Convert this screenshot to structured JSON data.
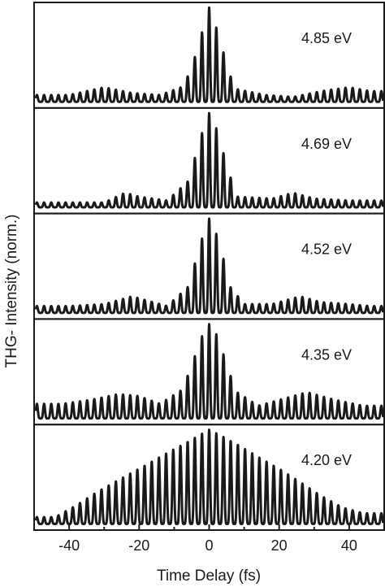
{
  "chart_data": {
    "type": "line",
    "title": "",
    "xlabel": "Time Delay (fs)",
    "ylabel": "THG- Intensity (norm.)",
    "xlim": [
      -50,
      50
    ],
    "ylim": [
      0,
      1
    ],
    "x_ticks": [
      -40,
      -20,
      0,
      20,
      40
    ],
    "x_tick_labels": [
      "-40",
      "-20",
      "0",
      "20",
      "40"
    ],
    "y_ticks_labeled": false,
    "grid": false,
    "legend": "none",
    "line_color": "#1a1a1a",
    "fringe_period_fs": 2.05,
    "series": [
      {
        "name": "4.85 eV",
        "baseline": 0.03,
        "peaks": [
          {
            "x": -40,
            "y": 0.1
          },
          {
            "x": -30,
            "y": 0.18
          },
          {
            "x": -22,
            "y": 0.12
          },
          {
            "x": -14,
            "y": 0.1
          },
          {
            "x": -8,
            "y": 0.18
          },
          {
            "x": -6,
            "y": 0.3
          },
          {
            "x": -4,
            "y": 0.5
          },
          {
            "x": -2,
            "y": 0.75
          },
          {
            "x": 0,
            "y": 1.0
          },
          {
            "x": 2,
            "y": 0.8
          },
          {
            "x": 4,
            "y": 0.55
          },
          {
            "x": 6,
            "y": 0.3
          },
          {
            "x": 8,
            "y": 0.16
          },
          {
            "x": 16,
            "y": 0.1
          },
          {
            "x": 24,
            "y": 0.08
          },
          {
            "x": 32,
            "y": 0.14
          },
          {
            "x": 40,
            "y": 0.18
          },
          {
            "x": 46,
            "y": 0.14
          }
        ]
      },
      {
        "name": "4.69 eV",
        "baseline": 0.03,
        "peaks": [
          {
            "x": -40,
            "y": 0.08
          },
          {
            "x": -30,
            "y": 0.08
          },
          {
            "x": -24,
            "y": 0.18
          },
          {
            "x": -20,
            "y": 0.14
          },
          {
            "x": -12,
            "y": 0.1
          },
          {
            "x": -6,
            "y": 0.3
          },
          {
            "x": -4,
            "y": 0.55
          },
          {
            "x": -2,
            "y": 0.8
          },
          {
            "x": 0,
            "y": 1.0
          },
          {
            "x": 2,
            "y": 0.85
          },
          {
            "x": 4,
            "y": 0.6
          },
          {
            "x": 6,
            "y": 0.35
          },
          {
            "x": 8,
            "y": 0.14
          },
          {
            "x": 18,
            "y": 0.12
          },
          {
            "x": 24,
            "y": 0.18
          },
          {
            "x": 30,
            "y": 0.12
          },
          {
            "x": 40,
            "y": 0.1
          },
          {
            "x": 46,
            "y": 0.1
          }
        ]
      },
      {
        "name": "4.52 eV",
        "baseline": 0.03,
        "peaks": [
          {
            "x": -40,
            "y": 0.1
          },
          {
            "x": -30,
            "y": 0.12
          },
          {
            "x": -22,
            "y": 0.2
          },
          {
            "x": -18,
            "y": 0.16
          },
          {
            "x": -12,
            "y": 0.1
          },
          {
            "x": -6,
            "y": 0.3
          },
          {
            "x": -4,
            "y": 0.55
          },
          {
            "x": -2,
            "y": 0.8
          },
          {
            "x": 0,
            "y": 1.0
          },
          {
            "x": 2,
            "y": 0.85
          },
          {
            "x": 4,
            "y": 0.6
          },
          {
            "x": 6,
            "y": 0.3
          },
          {
            "x": 10,
            "y": 0.12
          },
          {
            "x": 18,
            "y": 0.12
          },
          {
            "x": 26,
            "y": 0.2
          },
          {
            "x": 32,
            "y": 0.14
          },
          {
            "x": 40,
            "y": 0.12
          },
          {
            "x": 46,
            "y": 0.1
          }
        ]
      },
      {
        "name": "4.35 eV",
        "baseline": 0.03,
        "peaks": [
          {
            "x": -42,
            "y": 0.18
          },
          {
            "x": -34,
            "y": 0.22
          },
          {
            "x": -26,
            "y": 0.28
          },
          {
            "x": -20,
            "y": 0.26
          },
          {
            "x": -14,
            "y": 0.18
          },
          {
            "x": -8,
            "y": 0.32
          },
          {
            "x": -6,
            "y": 0.48
          },
          {
            "x": -4,
            "y": 0.68
          },
          {
            "x": -2,
            "y": 0.88
          },
          {
            "x": 0,
            "y": 1.0
          },
          {
            "x": 2,
            "y": 0.9
          },
          {
            "x": 4,
            "y": 0.7
          },
          {
            "x": 6,
            "y": 0.48
          },
          {
            "x": 8,
            "y": 0.3
          },
          {
            "x": 14,
            "y": 0.16
          },
          {
            "x": 22,
            "y": 0.24
          },
          {
            "x": 28,
            "y": 0.3
          },
          {
            "x": 36,
            "y": 0.22
          },
          {
            "x": 44,
            "y": 0.16
          }
        ]
      },
      {
        "name": "4.20 eV",
        "baseline": 0.03,
        "peaks": [
          {
            "x": -44,
            "y": 0.1
          },
          {
            "x": -38,
            "y": 0.22
          },
          {
            "x": -32,
            "y": 0.36
          },
          {
            "x": -26,
            "y": 0.48
          },
          {
            "x": -20,
            "y": 0.6
          },
          {
            "x": -14,
            "y": 0.72
          },
          {
            "x": -8,
            "y": 0.84
          },
          {
            "x": -4,
            "y": 0.92
          },
          {
            "x": 0,
            "y": 1.0
          },
          {
            "x": 4,
            "y": 0.93
          },
          {
            "x": 8,
            "y": 0.85
          },
          {
            "x": 14,
            "y": 0.72
          },
          {
            "x": 20,
            "y": 0.6
          },
          {
            "x": 26,
            "y": 0.46
          },
          {
            "x": 32,
            "y": 0.32
          },
          {
            "x": 38,
            "y": 0.2
          },
          {
            "x": 44,
            "y": 0.14
          }
        ]
      }
    ]
  }
}
